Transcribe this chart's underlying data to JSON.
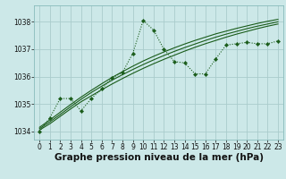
{
  "title": "Graphe pression niveau de la mer (hPa)",
  "bg_color": "#cce8e8",
  "grid_color": "#aacccc",
  "line_color": "#1a5c1a",
  "xlim": [
    -0.5,
    23.5
  ],
  "ylim": [
    1033.7,
    1038.6
  ],
  "yticks": [
    1034,
    1035,
    1036,
    1037,
    1038
  ],
  "xticks": [
    0,
    1,
    2,
    3,
    4,
    5,
    6,
    7,
    8,
    9,
    10,
    11,
    12,
    13,
    14,
    15,
    16,
    17,
    18,
    19,
    20,
    21,
    22,
    23
  ],
  "series_smooth1": {
    "x": [
      0,
      1,
      2,
      3,
      4,
      5,
      6,
      7,
      8,
      9,
      10,
      11,
      12,
      13,
      14,
      15,
      16,
      17,
      18,
      19,
      20,
      21,
      22,
      23
    ],
    "y": [
      1034.05,
      1034.28,
      1034.55,
      1034.82,
      1035.08,
      1035.3,
      1035.52,
      1035.73,
      1035.93,
      1036.12,
      1036.3,
      1036.47,
      1036.63,
      1036.78,
      1036.93,
      1037.07,
      1037.2,
      1037.32,
      1037.44,
      1037.55,
      1037.65,
      1037.75,
      1037.84,
      1037.92
    ]
  },
  "series_smooth2": {
    "x": [
      0,
      1,
      2,
      3,
      4,
      5,
      6,
      7,
      8,
      9,
      10,
      11,
      12,
      13,
      14,
      15,
      16,
      17,
      18,
      19,
      20,
      21,
      22,
      23
    ],
    "y": [
      1034.1,
      1034.35,
      1034.62,
      1034.9,
      1035.17,
      1035.42,
      1035.65,
      1035.87,
      1036.07,
      1036.26,
      1036.44,
      1036.61,
      1036.77,
      1036.92,
      1037.06,
      1037.19,
      1037.32,
      1037.44,
      1037.55,
      1037.65,
      1037.75,
      1037.84,
      1037.92,
      1038.0
    ]
  },
  "series_smooth3": {
    "x": [
      0,
      1,
      2,
      3,
      4,
      5,
      6,
      7,
      8,
      9,
      10,
      11,
      12,
      13,
      14,
      15,
      16,
      17,
      18,
      19,
      20,
      21,
      22,
      23
    ],
    "y": [
      1034.15,
      1034.42,
      1034.7,
      1034.98,
      1035.25,
      1035.5,
      1035.74,
      1035.97,
      1036.18,
      1036.38,
      1036.57,
      1036.74,
      1036.9,
      1037.05,
      1037.19,
      1037.32,
      1037.44,
      1037.56,
      1037.66,
      1037.76,
      1037.85,
      1037.94,
      1038.02,
      1038.09
    ]
  },
  "series_jagged": {
    "x": [
      0,
      1,
      2,
      3,
      4,
      5,
      6,
      7,
      8,
      9,
      10,
      11,
      12,
      13,
      14,
      15,
      16,
      17,
      18,
      19,
      20,
      21,
      22,
      23
    ],
    "y": [
      1034.0,
      1034.5,
      1035.2,
      1035.2,
      1034.75,
      1035.2,
      1035.55,
      1035.95,
      1036.15,
      1036.85,
      1038.05,
      1037.7,
      1037.0,
      1036.55,
      1036.5,
      1036.1,
      1036.1,
      1036.65,
      1037.15,
      1037.2,
      1037.25,
      1037.2,
      1037.2,
      1037.3
    ]
  },
  "title_fontsize": 7.5,
  "tick_fontsize": 5.5
}
